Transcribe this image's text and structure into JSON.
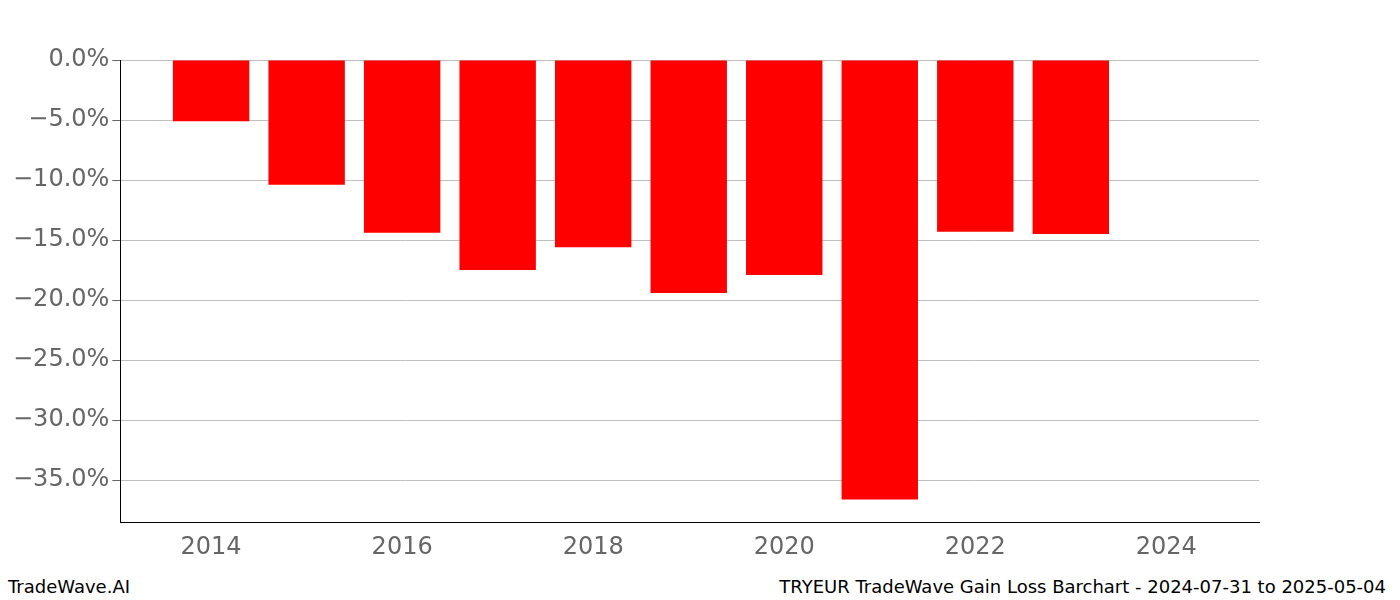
{
  "chart_data": {
    "type": "bar",
    "title": "TRYEUR TradeWave Gain Loss Barchart - 2024-07-31 to 2025-05-04",
    "annotations": [
      "TradeWave.AI"
    ],
    "x": [
      2014,
      2015,
      2016,
      2017,
      2018,
      2019,
      2020,
      2021,
      2022,
      2023
    ],
    "values": [
      -5.1,
      -10.4,
      -14.4,
      -17.5,
      -15.6,
      -19.4,
      -17.9,
      -36.6,
      -14.3,
      -14.5
    ],
    "color": "#ff0000",
    "xlim": [
      2013.05,
      2024.97
    ],
    "xticks": [
      2014,
      2016,
      2018,
      2020,
      2022,
      2024
    ],
    "ylim": [
      -38.5,
      0
    ],
    "yticks": [
      {
        "value": -35,
        "label": "−35.0%"
      },
      {
        "value": -30,
        "label": "−30.0%"
      },
      {
        "value": -25,
        "label": "−25.0%"
      },
      {
        "value": -20,
        "label": "−20.0%"
      },
      {
        "value": -15,
        "label": "−15.0%"
      },
      {
        "value": -10,
        "label": "−10.0%"
      },
      {
        "value": -5,
        "label": "−5.0%"
      },
      {
        "value": 0,
        "label": "0.0%"
      }
    ],
    "grid": true
  }
}
